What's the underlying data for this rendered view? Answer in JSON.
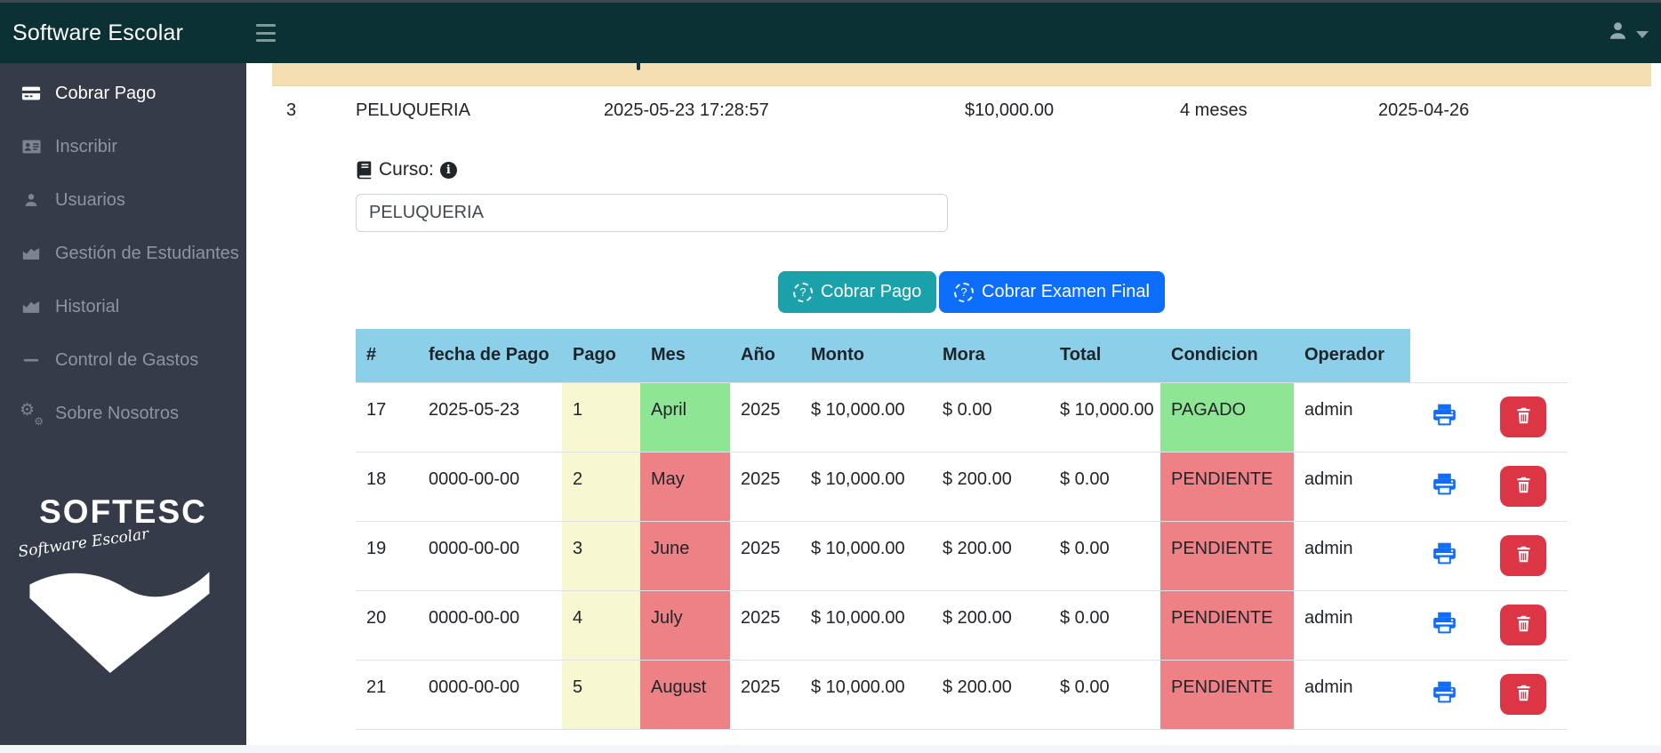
{
  "navbar": {
    "brand": "Software Escolar",
    "bg_color": "#0b3134"
  },
  "sidebar": {
    "bg_color": "#353b48",
    "items": [
      {
        "label": "Cobrar Pago",
        "icon": "credit-card-icon",
        "active": true
      },
      {
        "label": "Inscribir",
        "icon": "id-card-icon",
        "active": false
      },
      {
        "label": "Usuarios",
        "icon": "user-icon",
        "active": false
      },
      {
        "label": "Gestión de Estudiantes",
        "icon": "chart-icon",
        "active": false
      },
      {
        "label": "Historial",
        "icon": "chart-icon",
        "active": false
      },
      {
        "label": "Control de Gastos",
        "icon": "minus-icon",
        "active": false
      },
      {
        "label": "Sobre Nosotros",
        "icon": "gears-icon",
        "active": false
      }
    ],
    "logo": {
      "title": "SOFTESC",
      "subtitle": "Software Escolar"
    }
  },
  "summary_row": {
    "id": "3",
    "curso": "PELUQUERIA",
    "fecha_pago": "2025-05-23 17:28:57",
    "monto": "$10,000.00",
    "duracion": "4 meses",
    "fecha": "2025-04-26",
    "header_bg": "#f5dfb2"
  },
  "curso_field": {
    "label": "Curso:",
    "value": "PELUQUERIA"
  },
  "buttons": {
    "cobrar_pago": {
      "label": "Cobrar Pago",
      "color": "#1ba1a9"
    },
    "cobrar_examen": {
      "label": "Cobrar Examen Final",
      "color": "#0d6efd"
    }
  },
  "payments_table": {
    "headers": [
      "#",
      "fecha de Pago",
      "Pago",
      "Mes",
      "Año",
      "Monto",
      "Mora",
      "Total",
      "Condicion",
      "Operador"
    ],
    "header_bg": "#8bcfe9",
    "cell_colors": {
      "pago_bg": "#f7f7d1",
      "paid_bg": "#8ee593",
      "pending_bg": "#ed8186"
    },
    "rows": [
      {
        "num": "17",
        "fecha": "2025-05-23",
        "pago": "1",
        "mes": "April",
        "ano": "2025",
        "monto": "$ 10,000.00",
        "mora": "$ 0.00",
        "total": "$ 10,000.00",
        "condicion": "PAGADO",
        "operador": "admin",
        "estado": "pagado"
      },
      {
        "num": "18",
        "fecha": "0000-00-00",
        "pago": "2",
        "mes": "May",
        "ano": "2025",
        "monto": "$ 10,000.00",
        "mora": "$ 200.00",
        "total": "$ 0.00",
        "condicion": "PENDIENTE",
        "operador": "admin",
        "estado": "pendiente"
      },
      {
        "num": "19",
        "fecha": "0000-00-00",
        "pago": "3",
        "mes": "June",
        "ano": "2025",
        "monto": "$ 10,000.00",
        "mora": "$ 200.00",
        "total": "$ 0.00",
        "condicion": "PENDIENTE",
        "operador": "admin",
        "estado": "pendiente"
      },
      {
        "num": "20",
        "fecha": "0000-00-00",
        "pago": "4",
        "mes": "July",
        "ano": "2025",
        "monto": "$ 10,000.00",
        "mora": "$ 200.00",
        "total": "$ 0.00",
        "condicion": "PENDIENTE",
        "operador": "admin",
        "estado": "pendiente"
      },
      {
        "num": "21",
        "fecha": "0000-00-00",
        "pago": "5",
        "mes": "August",
        "ano": "2025",
        "monto": "$ 10,000.00",
        "mora": "$ 200.00",
        "total": "$ 0.00",
        "condicion": "PENDIENTE",
        "operador": "admin",
        "estado": "pendiente"
      }
    ],
    "actions": {
      "print_color": "#0d6efd",
      "delete_bg": "#dc3545"
    }
  }
}
